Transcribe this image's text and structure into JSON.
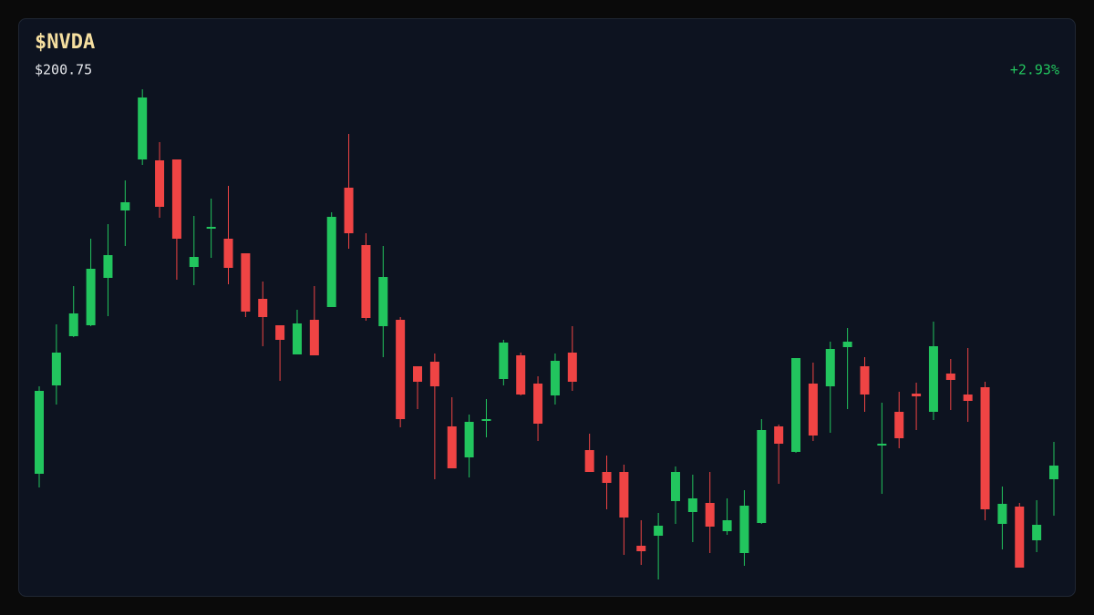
{
  "chart_data": {
    "type": "candlestick",
    "title": "$NVDA",
    "subtitle": "$200.75",
    "change": "+2.93%",
    "up_color": "#22c55e",
    "down_color": "#ef4444",
    "ylim": [
      186,
      244
    ],
    "open": [
      199.85,
      209.55,
      214.95,
      216.15,
      221.35,
      228.75,
      234.35,
      234.25,
      234.35,
      222.55,
      226.75,
      225.65,
      224.05,
      219.05,
      216.15,
      212.95,
      216.75,
      218.15,
      231.25,
      224.95,
      216.05,
      216.75,
      211.65,
      212.15,
      205.05,
      201.65,
      205.65,
      210.25,
      212.85,
      209.75,
      208.45,
      213.15,
      202.45,
      200.05,
      200.05,
      191.95,
      193.05,
      196.85,
      195.65,
      196.65,
      193.55,
      191.15,
      194.45,
      205.05,
      202.25,
      209.75,
      209.45,
      213.75,
      211.65,
      202.95,
      206.65,
      208.65,
      206.65,
      210.85,
      208.55,
      209.35,
      194.35,
      196.25,
      192.55,
      199.25
    ],
    "high": [
      209.45,
      216.25,
      220.45,
      225.65,
      227.25,
      232.05,
      242.05,
      236.25,
      234.35,
      228.15,
      230.05,
      231.45,
      224.05,
      220.95,
      216.15,
      217.85,
      220.45,
      228.55,
      237.15,
      226.25,
      224.85,
      217.05,
      211.65,
      213.05,
      208.25,
      206.35,
      208.05,
      214.55,
      213.15,
      210.55,
      213.05,
      216.05,
      204.25,
      201.85,
      200.85,
      194.75,
      195.55,
      200.65,
      199.75,
      200.05,
      197.15,
      198.05,
      205.85,
      205.25,
      212.55,
      212.05,
      214.35,
      215.85,
      212.65,
      207.65,
      208.85,
      209.85,
      216.55,
      212.45,
      213.65,
      209.95,
      198.45,
      196.65,
      196.95,
      203.35
    ],
    "low": [
      198.35,
      207.45,
      214.85,
      216.05,
      217.15,
      224.85,
      233.75,
      227.95,
      221.15,
      220.55,
      223.55,
      220.65,
      217.05,
      213.85,
      210.05,
      212.95,
      212.85,
      218.15,
      224.55,
      216.65,
      212.65,
      204.95,
      206.95,
      199.25,
      200.45,
      199.45,
      203.85,
      209.55,
      208.45,
      203.45,
      207.45,
      208.95,
      200.05,
      195.95,
      190.95,
      189.85,
      188.25,
      194.35,
      192.35,
      191.15,
      193.15,
      189.75,
      194.35,
      198.75,
      202.15,
      203.45,
      204.35,
      206.95,
      206.65,
      197.65,
      202.65,
      204.65,
      205.75,
      206.85,
      205.55,
      194.75,
      191.55,
      189.55,
      191.25,
      195.25
    ],
    "close": [
      208.95,
      213.15,
      217.45,
      222.35,
      223.85,
      229.65,
      241.15,
      229.15,
      225.65,
      223.65,
      226.95,
      222.45,
      217.65,
      217.05,
      214.55,
      216.35,
      212.85,
      228.05,
      226.25,
      216.95,
      221.45,
      205.85,
      209.95,
      209.45,
      200.45,
      205.55,
      205.85,
      214.25,
      208.55,
      205.35,
      212.25,
      209.95,
      200.05,
      198.85,
      195.05,
      191.35,
      194.15,
      200.05,
      197.15,
      194.05,
      194.75,
      196.35,
      204.65,
      203.15,
      212.55,
      204.05,
      213.55,
      214.35,
      208.55,
      203.15,
      203.75,
      208.35,
      213.85,
      210.15,
      207.85,
      195.95,
      196.55,
      189.55,
      194.25,
      200.75
    ]
  }
}
